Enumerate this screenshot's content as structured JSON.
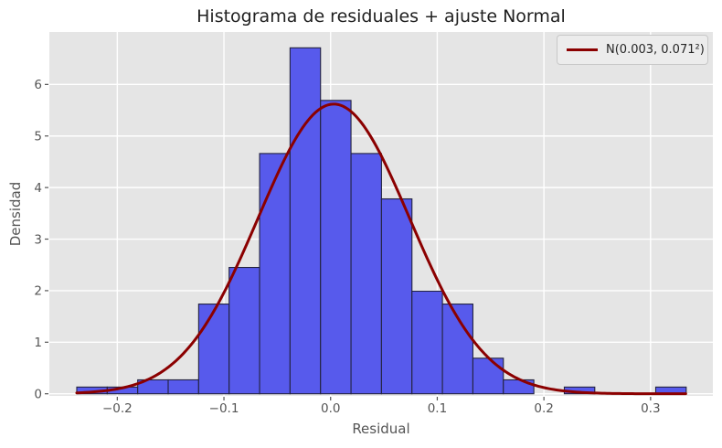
{
  "chart_data": {
    "type": "bar",
    "subtype": "histogram_with_normal_fit_curve",
    "title": "Histograma de residuales + ajuste Normal",
    "xlabel": "Residual",
    "ylabel": "Densidad",
    "axes": {
      "xlim": [
        -0.2637,
        0.3584
      ],
      "ylim": [
        -0.041,
        7.017
      ],
      "x_tick_values": [
        -0.2,
        -0.1,
        0.0,
        0.1,
        0.2,
        0.3
      ],
      "x_tick_labels": [
        "−0.2",
        "−0.1",
        "0.0",
        "0.1",
        "0.2",
        "0.3"
      ],
      "y_tick_values": [
        0,
        1,
        2,
        3,
        4,
        5,
        6
      ],
      "y_tick_labels": [
        "0",
        "1",
        "2",
        "3",
        "4",
        "5",
        "6"
      ],
      "grid": true
    },
    "histogram": {
      "bin_start": -0.238,
      "bin_width": 0.02857,
      "densities": [
        0.13,
        0.13,
        0.27,
        0.27,
        1.74,
        2.45,
        4.66,
        6.71,
        5.69,
        4.66,
        3.78,
        1.99,
        1.74,
        0.69,
        0.27,
        0,
        0.13,
        0,
        0,
        0.13
      ]
    },
    "normal_fit": {
      "mu": 0.003,
      "sigma": 0.071,
      "x_min": -0.238,
      "x_max": 0.333,
      "peak_density": 5.62
    },
    "legend": {
      "position": "upper-right",
      "entries": [
        {
          "label": "N(0.003, 0.071²)",
          "color": "#8b0000"
        }
      ]
    },
    "colors": {
      "plot_bg": "#e5e5e5",
      "grid": "#ffffff",
      "bar_fill": "#575aec",
      "bar_edge": "#23233f",
      "curve": "#8b0000",
      "tick_text": "#555555",
      "title_text": "#1f1f1f",
      "legend_bg": "#ececec",
      "legend_border": "#c8c8c8"
    }
  }
}
